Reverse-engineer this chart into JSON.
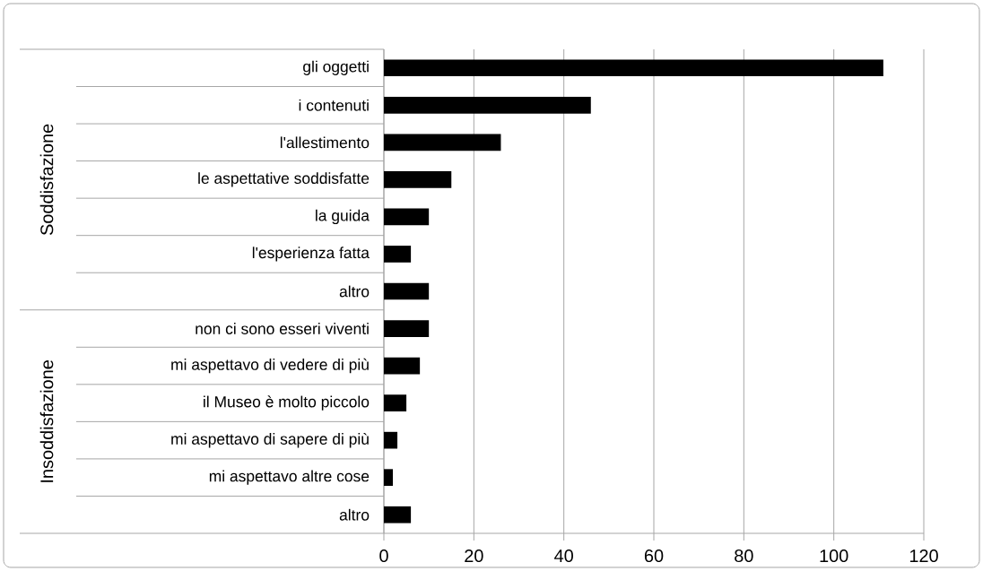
{
  "chart_data": {
    "type": "bar",
    "orientation": "horizontal",
    "categories": [
      "gli oggetti",
      "i contenuti",
      "l'allestimento",
      "le aspettative soddisfatte",
      "la guida",
      "l'esperienza fatta",
      "altro",
      "non ci sono esseri viventi",
      "mi aspettavo di vedere di più",
      "il Museo è molto piccolo",
      "mi aspettavo di sapere di più",
      "mi aspettavo altre cose",
      "altro"
    ],
    "values": [
      111,
      46,
      26,
      15,
      10,
      6,
      10,
      10,
      8,
      5,
      3,
      2,
      6
    ],
    "color": "#000000",
    "xlim": [
      0,
      120
    ],
    "xticks": [
      0,
      20,
      40,
      60,
      80,
      100,
      120
    ],
    "grid": "x",
    "annotations": [
      "Soddisfazione",
      "Insoddisfazione"
    ]
  }
}
